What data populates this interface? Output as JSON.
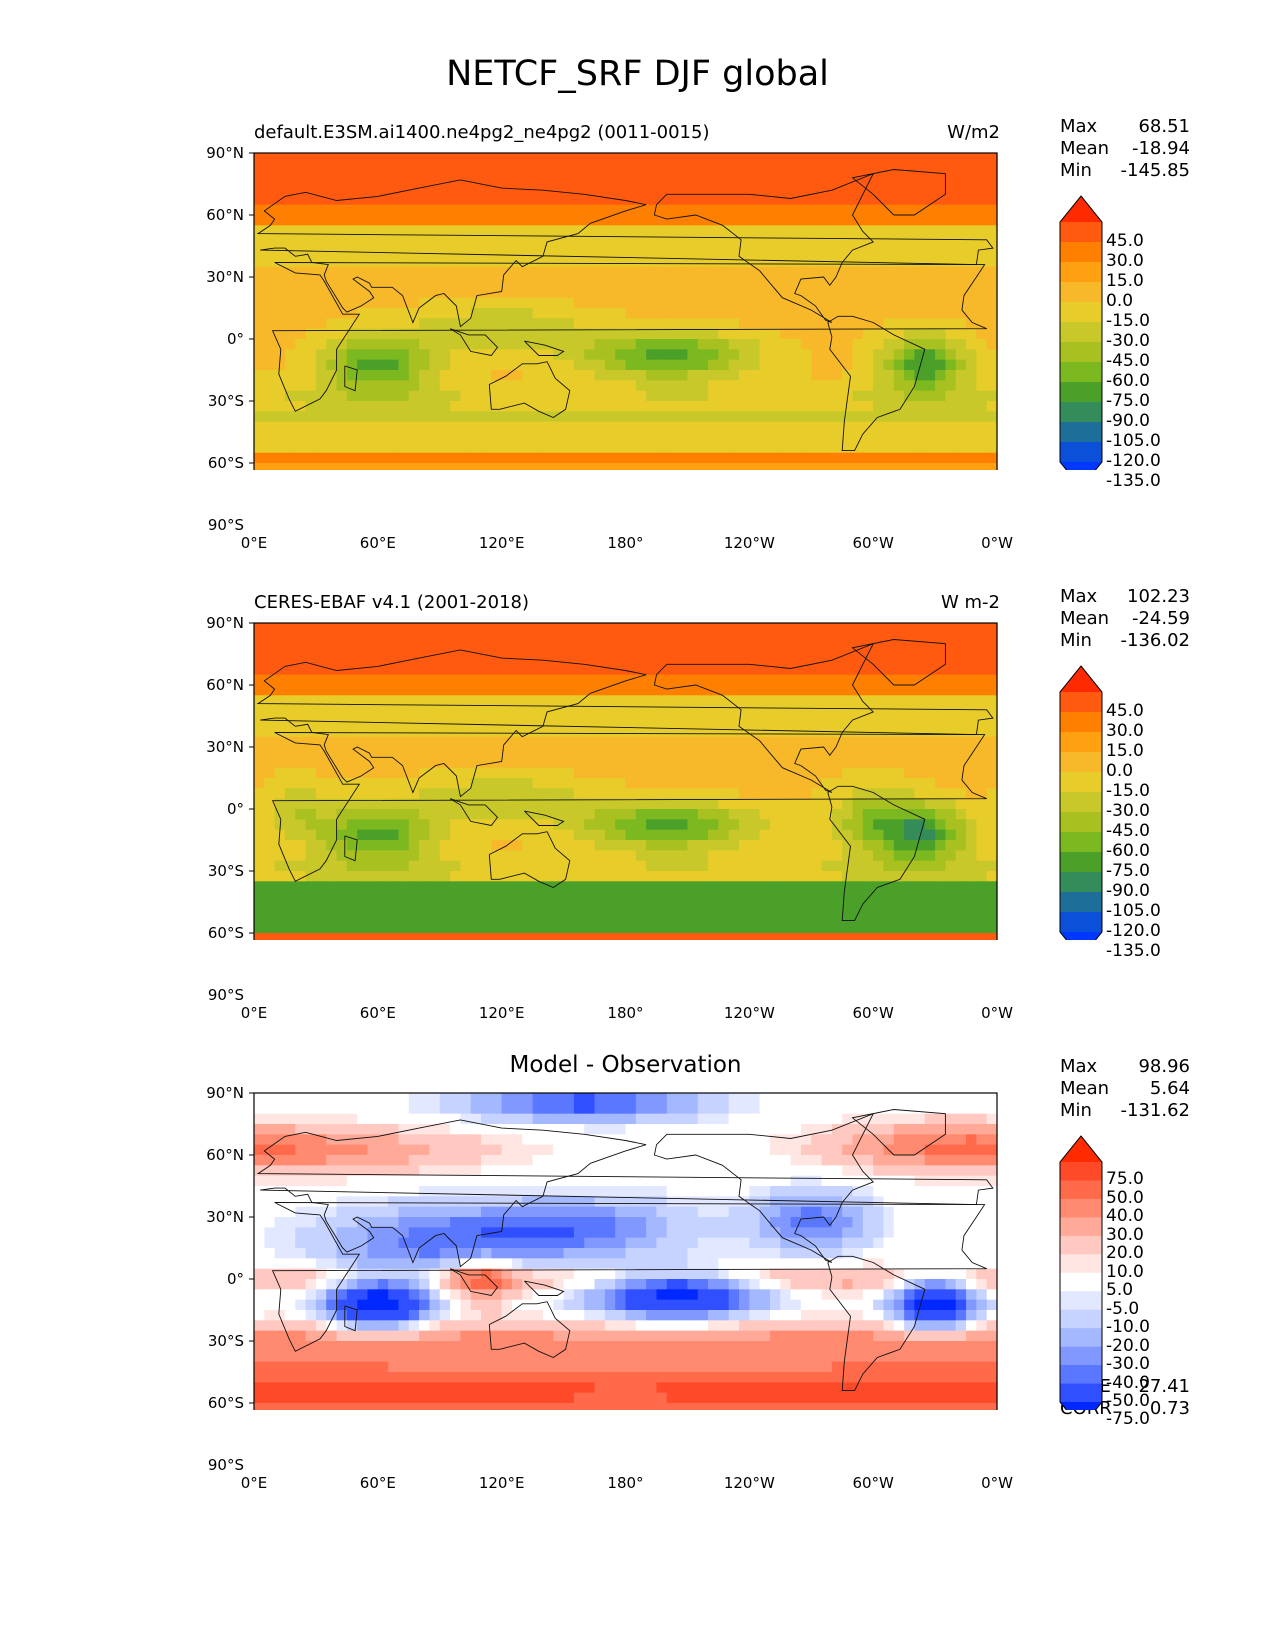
{
  "title": "NETCF_SRF DJF global",
  "lat_ticks": [
    "90°N",
    "60°N",
    "30°N",
    "0°",
    "30°S",
    "60°S",
    "90°S"
  ],
  "lon_ticks": [
    "0°E",
    "60°E",
    "120°E",
    "180°",
    "120°W",
    "60°W",
    "0°W"
  ],
  "panels": [
    {
      "title_left": "default.E3SM.ai1400.ne4pg2_ne4pg2 (0011-0015)",
      "title_right": "W/m2",
      "title_center": "",
      "stats": {
        "max_label": "Max",
        "max": "68.51",
        "mean_label": "Mean",
        "mean": "-18.94",
        "min_label": "Min",
        "min": "-145.85"
      },
      "colorbar": {
        "labels": [
          "45.0",
          "30.0",
          "15.0",
          "0.0",
          "-15.0",
          "-30.0",
          "-45.0",
          "-60.0",
          "-75.0",
          "-90.0",
          "-105.0",
          "-120.0",
          "-135.0"
        ],
        "colors": [
          "#ff2a00",
          "#ff5a10",
          "#ff8000",
          "#ffa010",
          "#f7b82a",
          "#e8cc2a",
          "#c8c82a",
          "#a8c020",
          "#7cb820",
          "#4aa028",
          "#348c5a",
          "#1e6e9a",
          "#0a50d8",
          "#0038ff"
        ]
      },
      "field": "model"
    },
    {
      "title_left": "CERES-EBAF v4.1 (2001-2018)",
      "title_right": "W m-2",
      "title_center": "",
      "stats": {
        "max_label": "Max",
        "max": "102.23",
        "mean_label": "Mean",
        "mean": "-24.59",
        "min_label": "Min",
        "min": "-136.02"
      },
      "colorbar": {
        "labels": [
          "45.0",
          "30.0",
          "15.0",
          "0.0",
          "-15.0",
          "-30.0",
          "-45.0",
          "-60.0",
          "-75.0",
          "-90.0",
          "-105.0",
          "-120.0",
          "-135.0"
        ],
        "colors": [
          "#ff2a00",
          "#ff5a10",
          "#ff8000",
          "#ffa010",
          "#f7b82a",
          "#e8cc2a",
          "#c8c82a",
          "#a8c020",
          "#7cb820",
          "#4aa028",
          "#348c5a",
          "#1e6e9a",
          "#0a50d8",
          "#0038ff"
        ]
      },
      "field": "obs"
    },
    {
      "title_left": "",
      "title_right": "",
      "title_center": "Model - Observation",
      "stats": {
        "max_label": "Max",
        "max": "98.96",
        "mean_label": "Mean",
        "mean": "5.64",
        "min_label": "Min",
        "min": "-131.62"
      },
      "extra": {
        "rmse_label": "RMSE",
        "rmse": "27.41",
        "corr_label": "CORR",
        "corr": "0.73"
      },
      "colorbar": {
        "labels": [
          "75.0",
          "50.0",
          "40.0",
          "30.0",
          "20.0",
          "10.0",
          "5.0",
          "-5.0",
          "-10.0",
          "-20.0",
          "-30.0",
          "-40.0",
          "-50.0",
          "-75.0"
        ],
        "colors": [
          "#ff2a00",
          "#ff4a2a",
          "#ff6a4a",
          "#ff8a70",
          "#ffaa98",
          "#ffc8c0",
          "#ffe6e2",
          "#ffffff",
          "#e2e8ff",
          "#c6d2ff",
          "#a4b8ff",
          "#8098ff",
          "#5a78ff",
          "#3050ff",
          "#0028ff"
        ]
      },
      "field": "diff"
    }
  ]
}
